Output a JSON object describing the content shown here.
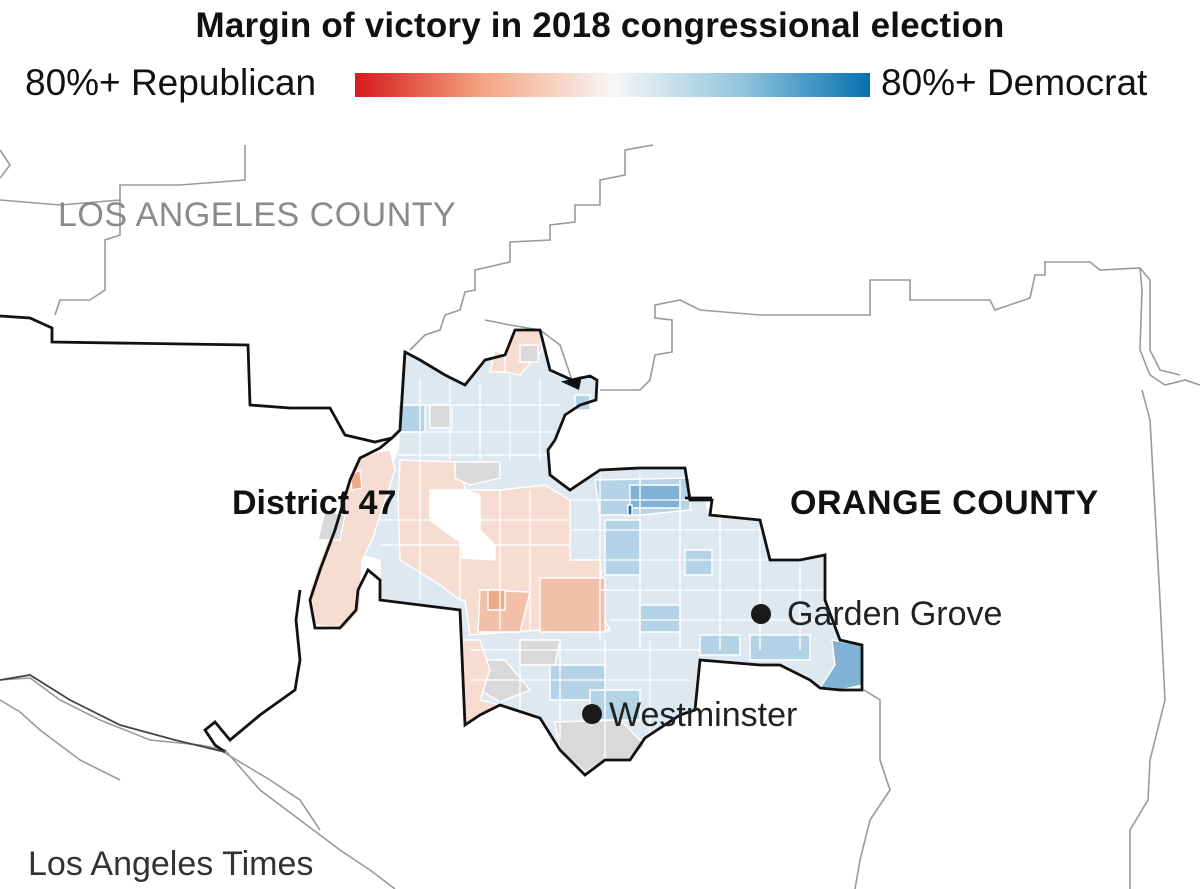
{
  "header": {
    "title": "Margin of victory in 2018 congressional election"
  },
  "legend": {
    "left_label": "80%+ Republican",
    "right_label": "80%+ Democrat",
    "gradient_colors": [
      "#d7191c",
      "#f4a582",
      "#f7f7f7",
      "#92c5de",
      "#0571b0"
    ]
  },
  "map": {
    "county_labels": {
      "los_angeles": "LOS ANGELES COUNTY",
      "orange": "ORANGE COUNTY"
    },
    "district_label": "District 47",
    "cities": [
      {
        "name": "Garden Grove"
      },
      {
        "name": "Westminster"
      }
    ],
    "colors": {
      "dem_light": "#dde8f0",
      "dem_mid": "#b5d3e7",
      "dem_strong": "#7fb2d5",
      "dem_max": "#0571b0",
      "rep_light": "#f6dcd1",
      "rep_mid": "#f2c0a8",
      "rep_strong": "#f0a98a",
      "no_data": "#d9d9d9"
    }
  },
  "footer": {
    "credit": "Los Angeles Times"
  }
}
